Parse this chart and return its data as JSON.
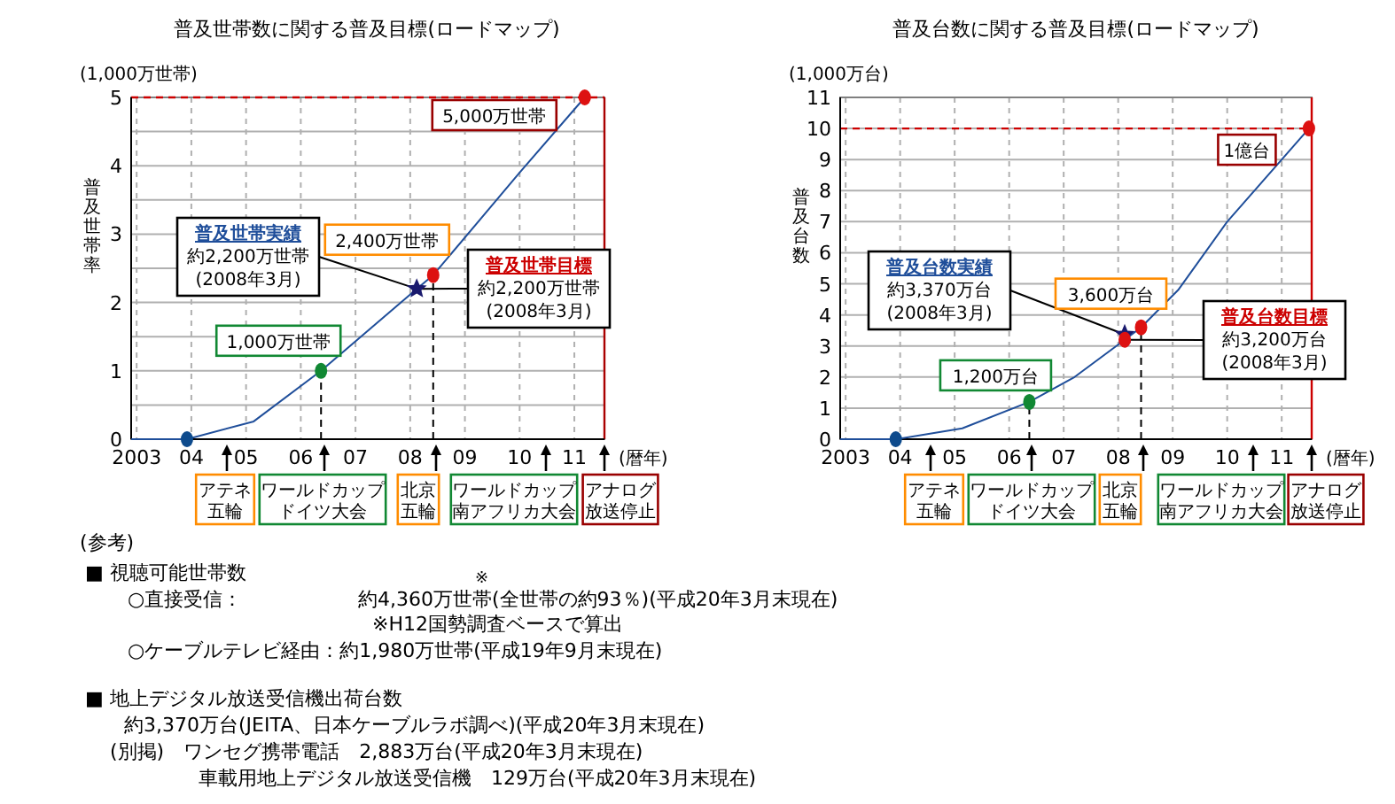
{
  "chart_data": [
    {
      "type": "line",
      "title": "普及世帯数に関する普及目標(ロードマップ)",
      "ylabel": "普及世帯率",
      "xlabel": "(暦年)",
      "grid": true,
      "xlim": [
        2002.9,
        2011.55
      ],
      "xticks": [
        {
          "value": 2003,
          "label": "2003"
        },
        {
          "value": 2004,
          "label": "04"
        },
        {
          "value": 2005,
          "label": "05"
        },
        {
          "value": 2006,
          "label": "06"
        },
        {
          "value": 2007,
          "label": "07"
        },
        {
          "value": 2008,
          "label": "08"
        },
        {
          "value": 2009,
          "label": "09"
        },
        {
          "value": 2010,
          "label": "10"
        },
        {
          "value": 2011,
          "label": "11"
        }
      ],
      "ylim": [
        0,
        5
      ],
      "yticks": [
        0,
        {
          "value": 0.5,
          "label": null
        },
        1,
        {
          "value": 1.5,
          "label": null
        },
        2,
        {
          "value": 2.5,
          "label": null
        },
        3,
        {
          "value": 3.5,
          "label": null
        },
        4,
        {
          "value": 4.5,
          "label": null
        },
        5
      ],
      "series": [
        {
          "type": "line",
          "color": "#1f4e9a",
          "x": [
            2002.9,
            2003.92,
            2005.14,
            2006.37,
            2008.12,
            2008.42,
            2010.0,
            2011.19
          ],
          "values": [
            0,
            0,
            0.26,
            1.0,
            2.2,
            2.4,
            3.9,
            5.0
          ]
        },
        {
          "type": "line",
          "color": "#000000",
          "line_style": "dashed",
          "x": [
            2006.37,
            2006.37
          ],
          "values": [
            0,
            1.0
          ]
        },
        {
          "type": "line",
          "color": "#000000",
          "line_style": "dashed",
          "x": [
            2008.42,
            2008.42
          ],
          "values": [
            0,
            2.4
          ]
        },
        {
          "type": "scatter",
          "marker": "circle",
          "color": "#0d4a8c",
          "x": [
            2003.92
          ],
          "values": [
            0
          ]
        },
        {
          "type": "scatter",
          "marker": "circle",
          "color": "#118833",
          "x": [
            2006.37
          ],
          "values": [
            1.0
          ]
        },
        {
          "type": "scatter",
          "marker": "circle",
          "color": "#dd1111",
          "x": [
            2008.42,
            2011.19
          ],
          "values": [
            2.4,
            5.0
          ]
        },
        {
          "type": "scatter",
          "marker": "star",
          "color": "#1a1a6e",
          "x": [
            2008.12
          ],
          "values": [
            2.2
          ]
        }
      ],
      "ref_lines": [
        {
          "axis": "y",
          "value": 5,
          "color": "#cc0000",
          "line_style": "dashed"
        },
        {
          "axis": "x",
          "value": 2011.55,
          "color": "#aa0000",
          "line_style": "solid"
        }
      ],
      "annotations": [
        "(1,000万世帯)",
        {
          "text": "5,000万世帯",
          "x": 2011.19,
          "y": 5.0
        },
        {
          "text": "2,400万世帯",
          "x": 2008.42,
          "y": 2.4
        },
        {
          "text": "1,000万世帯",
          "x": 2006.37,
          "y": 1.0
        },
        {
          "text": "普及世帯実績",
          "x": 2008.12,
          "y": 2.2
        },
        "約2,200万世帯",
        "(2008年3月)",
        {
          "text": "普及世帯目標",
          "x": 2008.12,
          "y": 2.2
        },
        "約2,200万世帯",
        "(2008年3月)",
        "アテネ五輪",
        "ワールドカップドイツ大会",
        "北京五輪",
        "ワールドカップ南アフリカ大会",
        "アナログ放送停止"
      ]
    },
    {
      "type": "line",
      "title": "普及台数に関する普及目標(ロードマップ)",
      "ylabel": "普及台数",
      "xlabel": "(暦年)",
      "grid": true,
      "xlim": [
        2002.9,
        2011.55
      ],
      "xticks": [
        {
          "value": 2003,
          "label": "2003"
        },
        {
          "value": 2004,
          "label": "04"
        },
        {
          "value": 2005,
          "label": "05"
        },
        {
          "value": 2006,
          "label": "06"
        },
        {
          "value": 2007,
          "label": "07"
        },
        {
          "value": 2008,
          "label": "08"
        },
        {
          "value": 2009,
          "label": "09"
        },
        {
          "value": 2010,
          "label": "10"
        },
        {
          "value": 2011,
          "label": "11"
        }
      ],
      "ylim": [
        0,
        11
      ],
      "yticks": [
        0,
        1,
        2,
        3,
        4,
        5,
        6,
        7,
        8,
        9,
        10,
        11
      ],
      "series": [
        {
          "type": "line",
          "color": "#1f4e9a",
          "x": [
            2002.9,
            2003.92,
            2005.14,
            2006.37,
            2007.2,
            2008.12,
            2008.42,
            2009.1,
            2010.0,
            2011.5
          ],
          "values": [
            0,
            0,
            0.35,
            1.2,
            2.0,
            3.2,
            3.6,
            4.8,
            7.0,
            10.0
          ]
        },
        {
          "type": "line",
          "color": "#000000",
          "line_style": "dashed",
          "x": [
            2006.37,
            2006.37
          ],
          "values": [
            0,
            1.2
          ]
        },
        {
          "type": "line",
          "color": "#000000",
          "line_style": "dashed",
          "x": [
            2008.42,
            2008.42
          ],
          "values": [
            0,
            3.6
          ]
        },
        {
          "type": "scatter",
          "marker": "circle",
          "color": "#0d4a8c",
          "x": [
            2003.92
          ],
          "values": [
            0
          ]
        },
        {
          "type": "scatter",
          "marker": "circle",
          "color": "#118833",
          "x": [
            2006.37
          ],
          "values": [
            1.2
          ]
        },
        {
          "type": "scatter",
          "marker": "star",
          "color": "#1a1a6e",
          "x": [
            2008.12
          ],
          "values": [
            3.37
          ]
        },
        {
          "type": "scatter",
          "marker": "circle",
          "color": "#dd1111",
          "x": [
            2008.12,
            2008.42,
            2011.5
          ],
          "values": [
            3.2,
            3.6,
            10.0
          ]
        }
      ],
      "ref_lines": [
        {
          "axis": "y",
          "value": 10,
          "color": "#cc0000",
          "line_style": "dashed"
        },
        {
          "axis": "x",
          "value": 2011.55,
          "color": "#cc0000",
          "line_style": "solid"
        }
      ],
      "annotations": [
        "(1,000万台)",
        {
          "text": "1億台",
          "x": 2011.5,
          "y": 10.0
        },
        {
          "text": "3,600万台",
          "x": 2008.42,
          "y": 3.6
        },
        {
          "text": "1,200万台",
          "x": 2006.37,
          "y": 1.2
        },
        {
          "text": "普及台数実績",
          "x": 2008.12,
          "y": 3.37
        },
        "約3,370万台",
        "(2008年3月)",
        {
          "text": "普及台数目標",
          "x": 2008.12,
          "y": 3.2
        },
        "約3,200万台",
        "(2008年3月)",
        "アテネ五輪",
        "ワールドカップドイツ大会",
        "北京五輪",
        "ワールドカップ南アフリカ大会",
        "アナログ放送停止"
      ]
    },
    {
      "type": "other",
      "title": "(参考)",
      "annotations": [
        "■ 視聴可能世帯数",
        "○直接受信：",
        "※",
        "約4,360万世帯(全世帯の約93％)(平成20年3月末現在)",
        "※H12国勢調査ベースで算出",
        "○ケーブルテレビ経由：約1,980万世帯(平成19年9月末現在)",
        "■ 地上デジタル放送受信機出荷台数",
        "約3,370万台(JEITA、日本ケーブルラボ調べ)(平成20年3月末現在)",
        "(別掲)　ワンセグ携帯電話　2,883万台(平成20年3月末現在)",
        "車載用地上デジタル放送受信機　129万台(平成20年3月末現在)"
      ]
    }
  ]
}
